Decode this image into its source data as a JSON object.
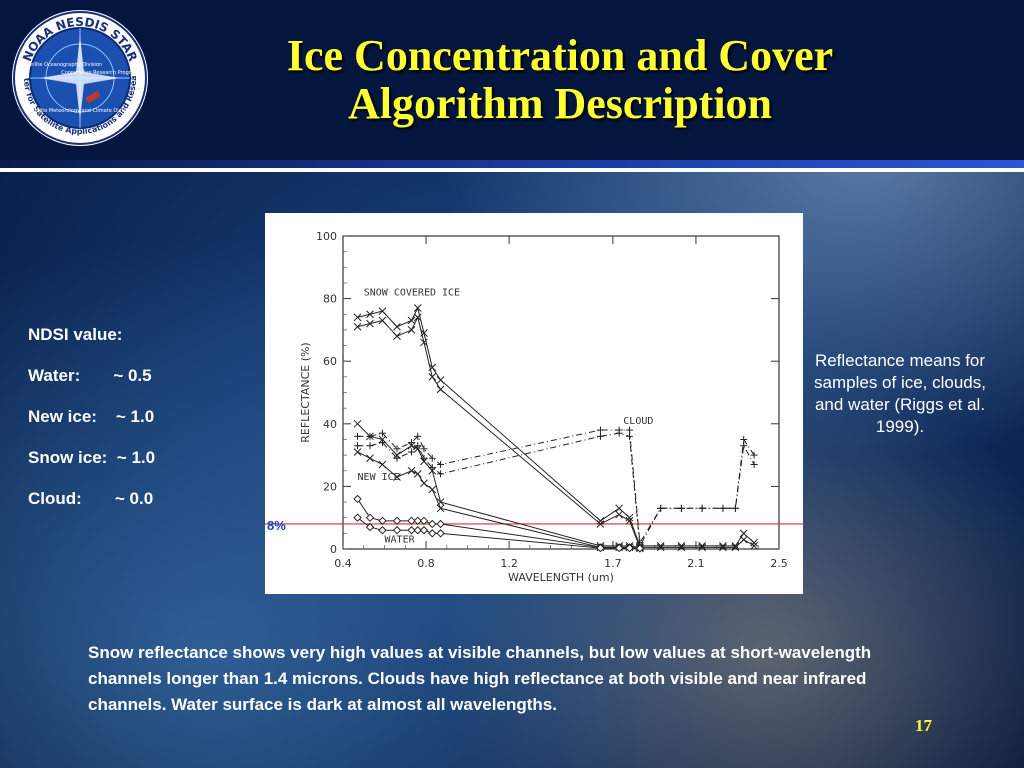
{
  "title_line1": "Ice Concentration and Cover",
  "title_line2": "Algorithm Description",
  "logo": {
    "ring_text": "NOAA NESDIS STAR",
    "ring_text_bottom": "Center for Satellite Applications and Research",
    "divisions": [
      "Satellite Oceanography Division",
      "Cooperative Research Program",
      "Satellite Meteorology and Climate Division"
    ]
  },
  "ndsi": {
    "heading": "NDSI value:",
    "rows": [
      "Water:       ~ 0.5",
      "New ice:    ~ 1.0",
      "Snow ice:  ~ 1.0",
      "Cloud:       ~ 0.0"
    ]
  },
  "threshold_label": "8%",
  "caption": "Reflectance means for samples of ice, clouds, and water (Riggs et al. 1999).",
  "body_text": "Snow reflectance shows very high values at visible channels, but low values at short-wavelength channels longer than 1.4 microns. Clouds have high reflectance at both visible and near infrared channels. Water surface is dark at almost all wavelengths.",
  "page_number": "17",
  "colors": {
    "title": "#ffff33",
    "threshold": "#d63030",
    "threshold_label": "#1a3fd0"
  },
  "chart_data": {
    "type": "line",
    "xlabel": "WAVELENGTH (um)",
    "ylabel": "REFLECTANCE (%)",
    "xlim": [
      0.4,
      2.5
    ],
    "ylim": [
      0,
      100
    ],
    "xticks": [
      "0.4",
      "0.8",
      "1.2",
      "1.7",
      "2.1",
      "2.5"
    ],
    "xtick_values": [
      0.4,
      0.8,
      1.2,
      1.7,
      2.1,
      2.5
    ],
    "yticks": [
      "0",
      "20",
      "40",
      "60",
      "80",
      "100"
    ],
    "ytick_values": [
      0,
      20,
      40,
      60,
      80,
      100
    ],
    "grid": false,
    "threshold": 8,
    "annotations": [
      "SNOW COVERED ICE",
      "CLOUD",
      "NEW ICE",
      "WATER"
    ],
    "series": [
      {
        "group": "snow",
        "marker": "x",
        "dash": false,
        "x": [
          0.47,
          0.53,
          0.59,
          0.66,
          0.73,
          0.76,
          0.79,
          0.83,
          0.87,
          1.64,
          1.73,
          1.78,
          1.83,
          1.93,
          2.03,
          2.13,
          2.23,
          2.29,
          2.33,
          2.38
        ],
        "y": [
          74,
          75,
          76,
          71,
          73,
          77,
          69,
          58,
          54,
          9,
          13,
          10,
          1,
          1,
          1,
          1,
          1,
          1,
          5,
          2
        ]
      },
      {
        "group": "snow",
        "marker": "x",
        "dash": false,
        "x": [
          0.47,
          0.53,
          0.59,
          0.66,
          0.73,
          0.76,
          0.79,
          0.83,
          0.87,
          1.64,
          1.73,
          1.78,
          1.83,
          1.93,
          2.03,
          2.13,
          2.23,
          2.29,
          2.33,
          2.38
        ],
        "y": [
          71,
          72,
          73,
          68,
          70,
          74,
          66,
          55,
          51,
          8,
          11,
          9,
          0.5,
          0.5,
          0.5,
          0.5,
          0.5,
          0.5,
          3,
          1
        ]
      },
      {
        "group": "cloud",
        "marker": "+",
        "dash": true,
        "x": [
          0.47,
          0.53,
          0.59,
          0.66,
          0.73,
          0.76,
          0.79,
          0.83,
          0.87,
          1.64,
          1.73,
          1.78,
          1.83,
          1.93,
          2.03,
          2.13,
          2.23,
          2.29,
          2.33,
          2.38
        ],
        "y": [
          36,
          36,
          37,
          32,
          34,
          36,
          32,
          29,
          27,
          38,
          38,
          38,
          2,
          13,
          13,
          13,
          13,
          13,
          35,
          30
        ]
      },
      {
        "group": "cloud",
        "marker": "+",
        "dash": true,
        "x": [
          0.47,
          0.53,
          0.59,
          0.66,
          0.73,
          0.76,
          0.79,
          0.83,
          0.87,
          1.64,
          1.73,
          1.78,
          1.83,
          1.93,
          2.03,
          2.13,
          2.23,
          2.29,
          2.33,
          2.38
        ],
        "y": [
          33,
          33,
          34,
          29,
          31,
          33,
          29,
          26,
          24,
          36,
          37,
          36,
          1,
          13,
          13,
          13,
          13,
          13,
          33,
          27
        ]
      },
      {
        "group": "newice",
        "marker": "x",
        "dash": false,
        "x": [
          0.47,
          0.53,
          0.59,
          0.66,
          0.73,
          0.76,
          0.79,
          0.83,
          0.87,
          1.64,
          1.73,
          1.78,
          1.83
        ],
        "y": [
          40,
          36,
          35,
          30,
          33,
          32,
          28,
          25,
          15,
          1,
          1,
          1,
          0.5
        ]
      },
      {
        "group": "newice",
        "marker": "x",
        "dash": false,
        "x": [
          0.47,
          0.53,
          0.59,
          0.66,
          0.73,
          0.76,
          0.79,
          0.83,
          0.87,
          1.64,
          1.73,
          1.78,
          1.83
        ],
        "y": [
          31,
          29,
          27,
          23,
          25,
          24,
          21,
          19,
          13,
          0.5,
          0.5,
          0.5,
          0.2
        ]
      },
      {
        "group": "water",
        "marker": "o",
        "dash": false,
        "x": [
          0.47,
          0.53,
          0.59,
          0.66,
          0.73,
          0.76,
          0.79,
          0.83,
          0.87,
          1.64,
          1.73,
          1.78,
          1.83
        ],
        "y": [
          16,
          10,
          9,
          9,
          9,
          9,
          9,
          8,
          8,
          0.5,
          0.5,
          0.5,
          0.3
        ]
      },
      {
        "group": "water",
        "marker": "o",
        "dash": false,
        "x": [
          0.47,
          0.53,
          0.59,
          0.66,
          0.73,
          0.76,
          0.79,
          0.83,
          0.87,
          1.64,
          1.73,
          1.78,
          1.83
        ],
        "y": [
          10,
          7,
          6,
          6,
          6,
          6,
          6,
          5,
          5,
          0.3,
          0.3,
          0.3,
          0.2
        ]
      }
    ]
  }
}
